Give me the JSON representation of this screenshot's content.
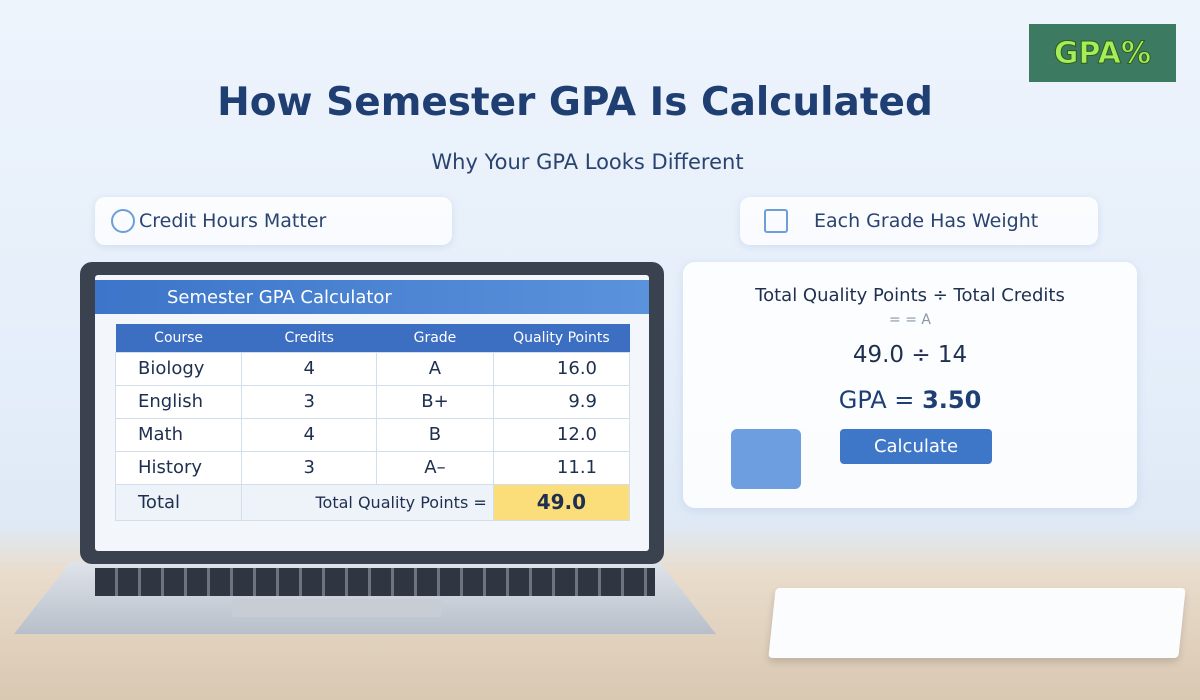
{
  "title": "How Semester GPA Is Calculated",
  "subtitle": "Why Your GPA Looks Different",
  "logo_text": "GPA%",
  "pills": [
    {
      "label": "Credit Hours Matter",
      "icon": "clock-icon"
    },
    {
      "label": "Each Grade Has Weight",
      "icon": "scale-icon"
    }
  ],
  "calculator": {
    "title": "Semester GPA Calculator",
    "columns": [
      "Course",
      "Credits",
      "Grade",
      "Quality Points"
    ],
    "rows": [
      {
        "course": "Biology",
        "credits": "4",
        "grade": "A",
        "points": "16.0"
      },
      {
        "course": "English",
        "credits": "3",
        "grade": "B+",
        "points": "9.9"
      },
      {
        "course": "Math",
        "credits": "4",
        "grade": "B",
        "points": "12.0"
      },
      {
        "course": "History",
        "credits": "3",
        "grade": "A–",
        "points": "11.1"
      }
    ],
    "total_label": "Total",
    "total_points_label": "Total Quality Points =",
    "total_points": "49.0"
  },
  "formula": {
    "line1": "Total Quality Points ÷ Total Credits",
    "line2": "= = A",
    "line3": "49.0 ÷ 14",
    "gpa_label": "GPA =",
    "gpa_value": "3.50",
    "button": "Calculate"
  },
  "colors": {
    "accent": "#3c6fc2",
    "highlight": "#fbdd7a",
    "title": "#1f3f73"
  }
}
